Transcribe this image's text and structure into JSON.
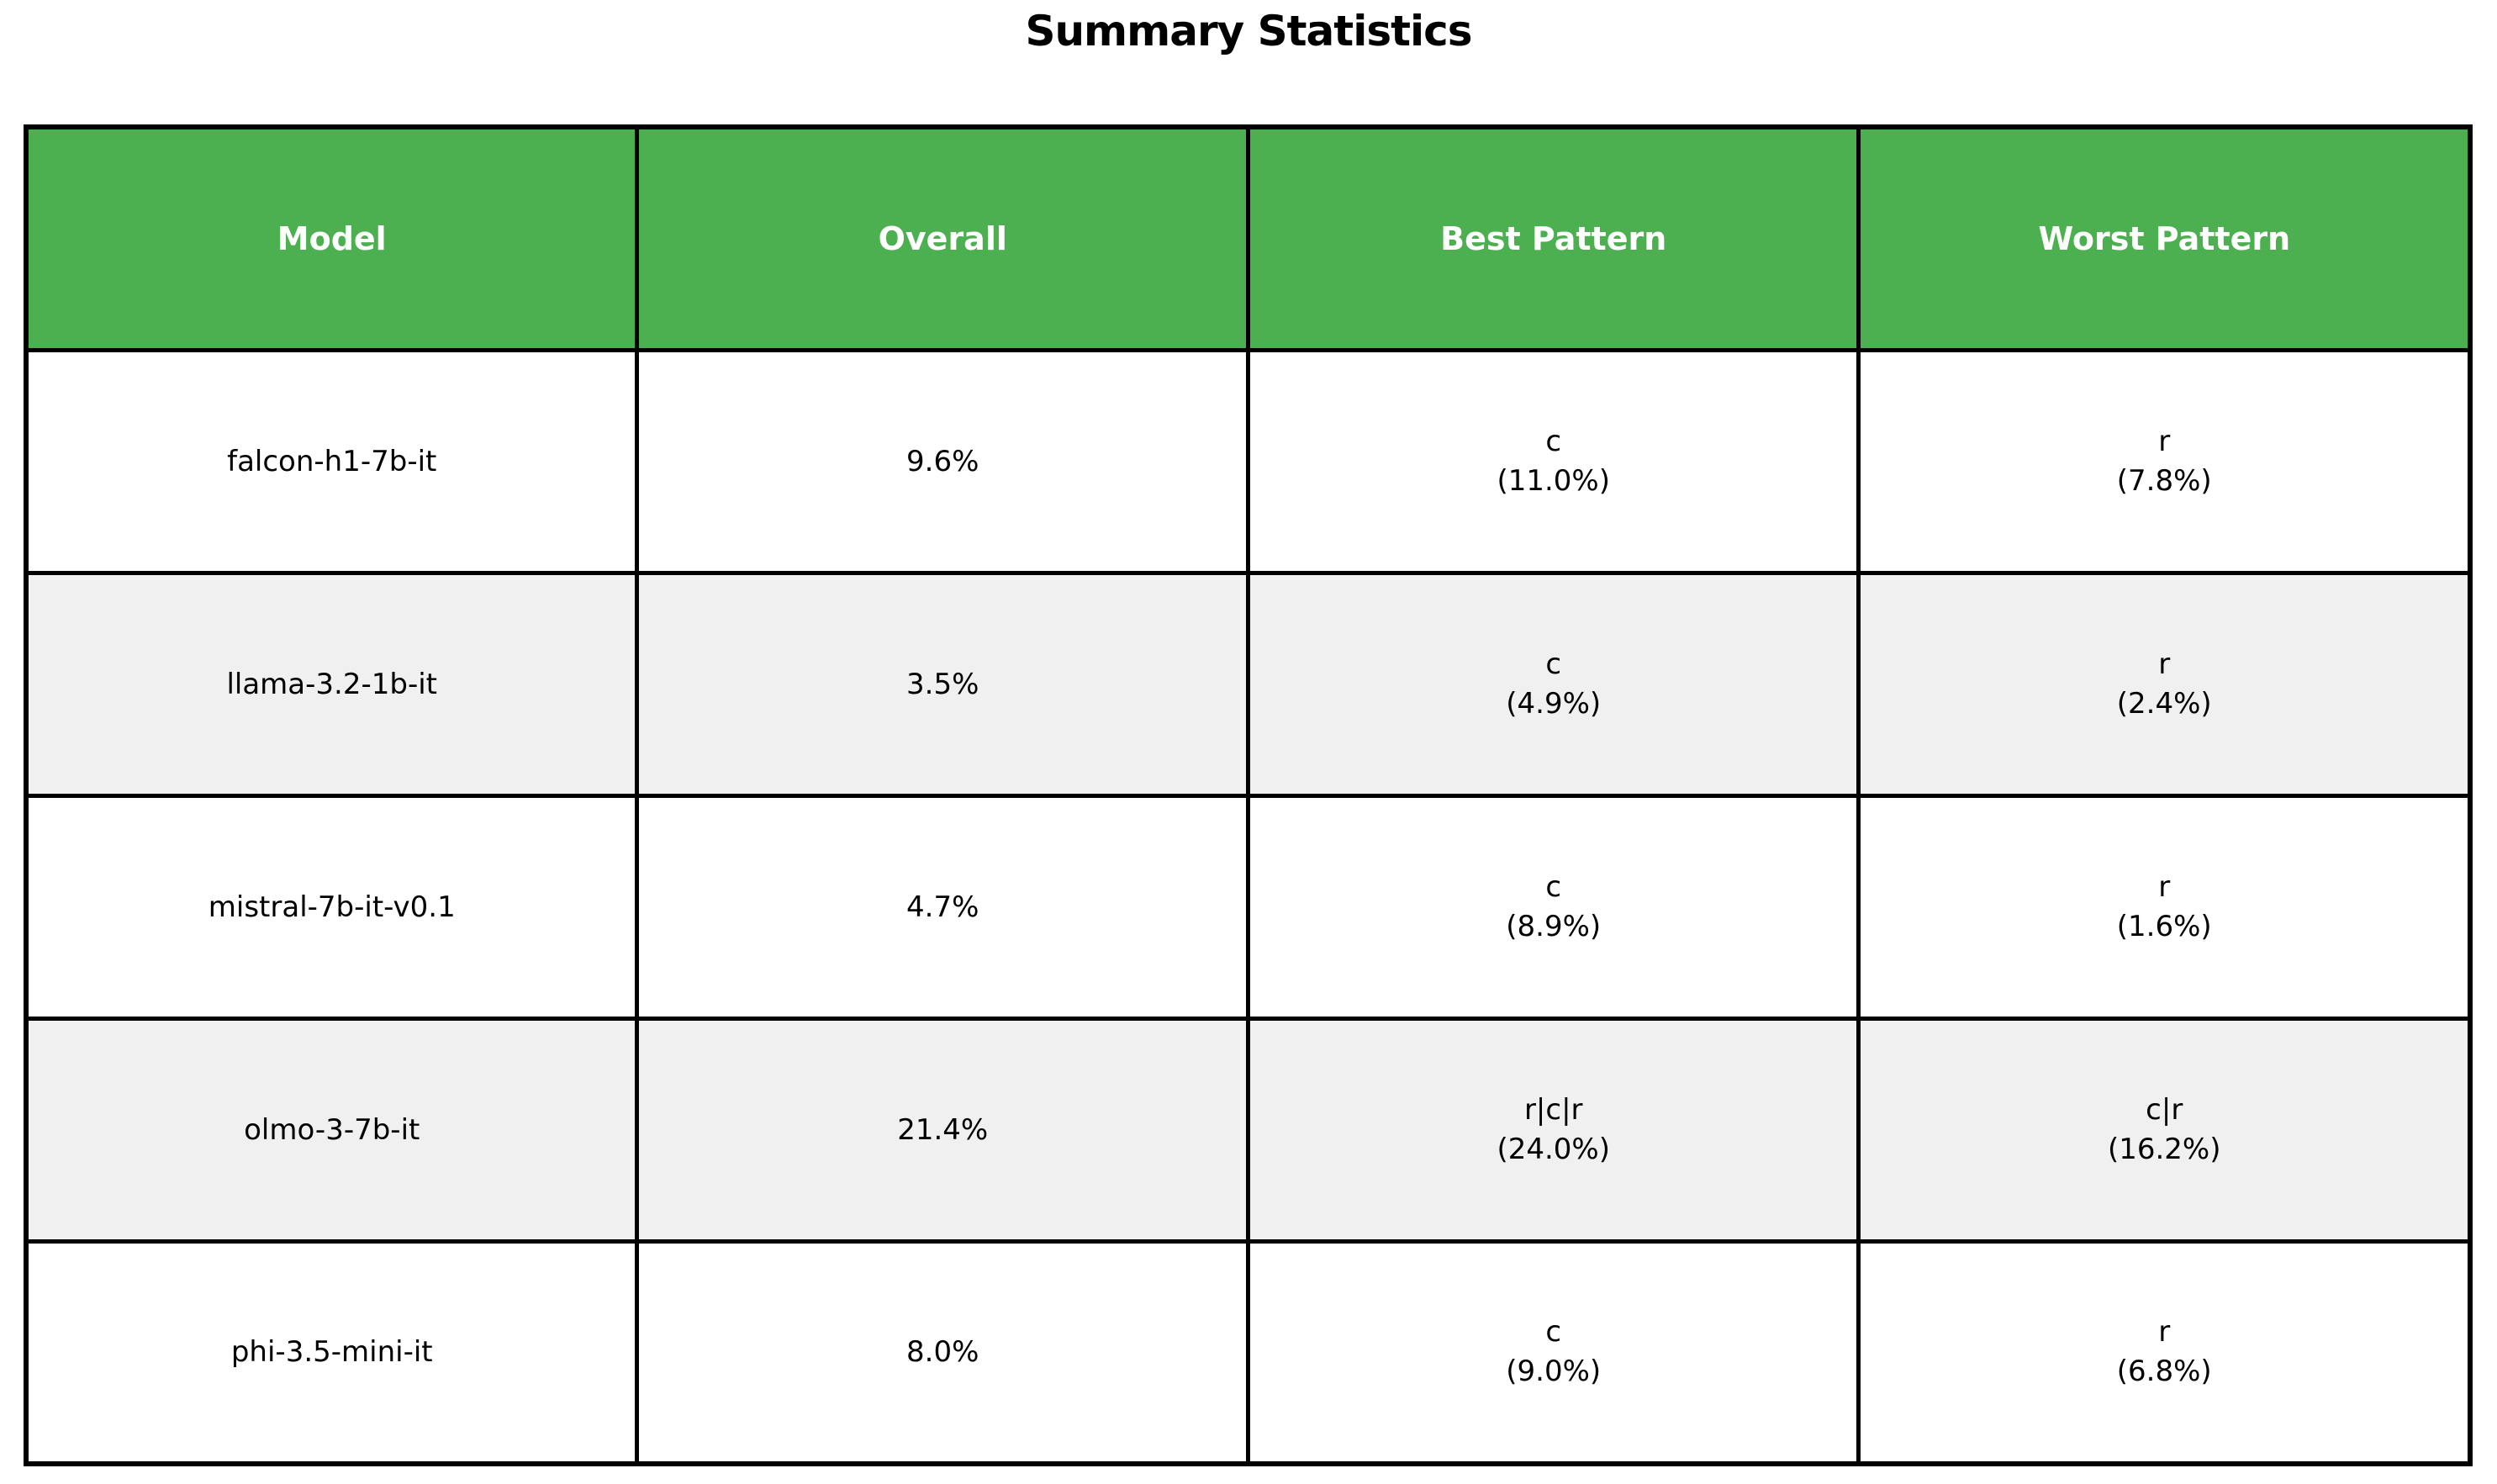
{
  "title": "Summary Statistics",
  "colors": {
    "header_bg": "#4CAF50",
    "header_text": "#ffffff",
    "row_alt_bg": "#f0f0f0",
    "border": "#000000"
  },
  "table": {
    "headers": [
      "Model",
      "Overall",
      "Best Pattern",
      "Worst Pattern"
    ],
    "rows": [
      {
        "model": "falcon-h1-7b-it",
        "overall": "9.6%",
        "best_pattern": "c",
        "best_value": "(11.0%)",
        "worst_pattern": "r",
        "worst_value": "(7.8%)"
      },
      {
        "model": "llama-3.2-1b-it",
        "overall": "3.5%",
        "best_pattern": "c",
        "best_value": "(4.9%)",
        "worst_pattern": "r",
        "worst_value": "(2.4%)"
      },
      {
        "model": "mistral-7b-it-v0.1",
        "overall": "4.7%",
        "best_pattern": "c",
        "best_value": "(8.9%)",
        "worst_pattern": "r",
        "worst_value": "(1.6%)"
      },
      {
        "model": "olmo-3-7b-it",
        "overall": "21.4%",
        "best_pattern": "r|c|r",
        "best_value": "(24.0%)",
        "worst_pattern": "c|r",
        "worst_value": "(16.2%)"
      },
      {
        "model": "phi-3.5-mini-it",
        "overall": "8.0%",
        "best_pattern": "c",
        "best_value": "(9.0%)",
        "worst_pattern": "r",
        "worst_value": "(6.8%)"
      }
    ]
  },
  "chart_data": {
    "type": "table",
    "title": "Summary Statistics",
    "columns": [
      "Model",
      "Overall",
      "Best Pattern",
      "Worst Pattern"
    ],
    "rows": [
      [
        "falcon-h1-7b-it",
        "9.6%",
        "c (11.0%)",
        "r (7.8%)"
      ],
      [
        "llama-3.2-1b-it",
        "3.5%",
        "c (4.9%)",
        "r (2.4%)"
      ],
      [
        "mistral-7b-it-v0.1",
        "4.7%",
        "c (8.9%)",
        "r (1.6%)"
      ],
      [
        "olmo-3-7b-it",
        "21.4%",
        "r|c|r (24.0%)",
        "c|r (16.2%)"
      ],
      [
        "phi-3.5-mini-it",
        "8.0%",
        "c (9.0%)",
        "r (6.8%)"
      ]
    ],
    "layout": {
      "header_bg": "#4CAF50",
      "header_text_color": "#ffffff",
      "alt_row_bg": "#f0f0f0",
      "grid": "all-borders",
      "title_position": "top-center"
    }
  }
}
